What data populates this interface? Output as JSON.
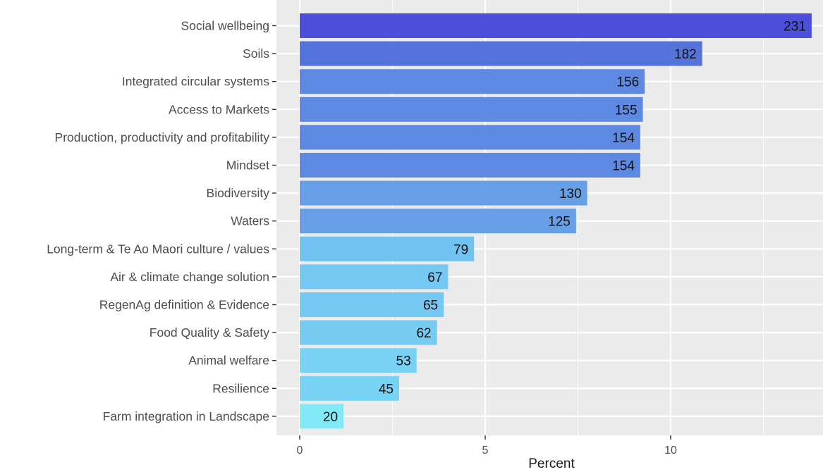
{
  "chart_data": {
    "type": "bar",
    "orientation": "horizontal",
    "title": "",
    "xlabel": "Percent",
    "ylabel": "",
    "xlim": [
      0,
      14.3
    ],
    "x_ticks": [
      0,
      5,
      10
    ],
    "x_tick_labels": [
      "0",
      "5",
      "10"
    ],
    "grid": true,
    "legend": "none",
    "categories": [
      "Social wellbeing",
      "Soils",
      "Integrated circular systems",
      "Access to Markets",
      "Production, productivity and profitability",
      "Mindset",
      "Biodiversity",
      "Waters",
      "Long-term & Te Ao Maori culture / values",
      "Air & climate change solution",
      "RegenAg definition & Evidence",
      "Food Quality & Safety",
      "Animal welfare",
      "Resilience",
      "Farm integration in Landscape"
    ],
    "values": [
      13.8,
      10.85,
      9.3,
      9.25,
      9.18,
      9.18,
      7.75,
      7.45,
      4.7,
      4.0,
      3.88,
      3.7,
      3.15,
      2.68,
      1.18
    ],
    "data_labels": [
      "231",
      "182",
      "156",
      "155",
      "154",
      "154",
      "130",
      "125",
      "79",
      "67",
      "65",
      "62",
      "53",
      "45",
      "20"
    ],
    "bar_colors": [
      "#4c4fd9",
      "#5474dc",
      "#5e89e2",
      "#5e89e2",
      "#5e89e2",
      "#5e89e2",
      "#679fe7",
      "#679fe7",
      "#72c2f1",
      "#74c8f2",
      "#74c8f2",
      "#75cbf2",
      "#77d2f3",
      "#77d2f3",
      "#82eaf7"
    ],
    "colors": {
      "panel_background": "#ebebeb",
      "grid": "#ffffff",
      "axis_text": "#4d4d4d"
    }
  }
}
